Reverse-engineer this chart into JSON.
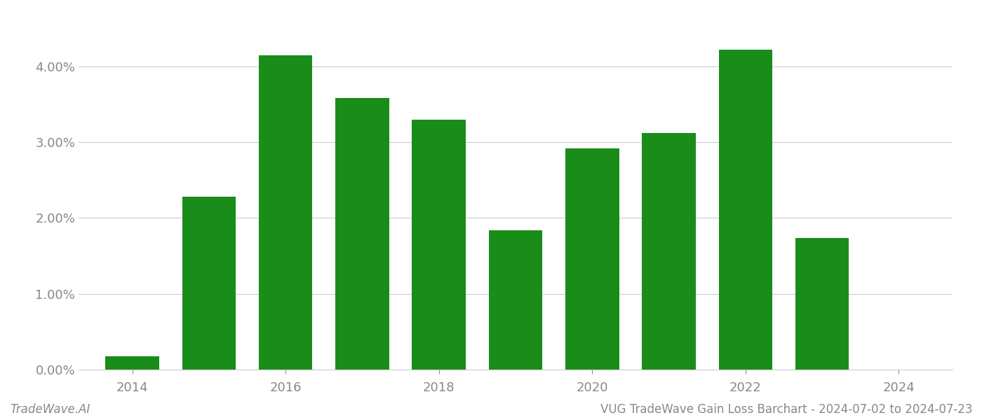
{
  "years": [
    2014,
    2015,
    2016,
    2017,
    2018,
    2019,
    2020,
    2021,
    2022,
    2023
  ],
  "values": [
    0.0018,
    0.0228,
    0.0415,
    0.0358,
    0.033,
    0.0184,
    0.0292,
    0.0312,
    0.0422,
    0.0174
  ],
  "bar_color": "#1a8c1a",
  "background_color": "#ffffff",
  "bottom_left_text": "TradeWave.AI",
  "bottom_right_text": "VUG TradeWave Gain Loss Barchart - 2024-07-02 to 2024-07-23",
  "grid_color": "#cccccc",
  "tick_label_color": "#888888",
  "bottom_text_color": "#888888",
  "label_years": [
    2014,
    2016,
    2018,
    2020,
    2022,
    2024
  ],
  "ylim": [
    0,
    0.046
  ],
  "yticks": [
    0.0,
    0.01,
    0.02,
    0.03,
    0.04
  ],
  "xlim": [
    2013.3,
    2024.7
  ],
  "bar_width": 0.7,
  "figsize": [
    14.0,
    6.0
  ],
  "dpi": 100
}
